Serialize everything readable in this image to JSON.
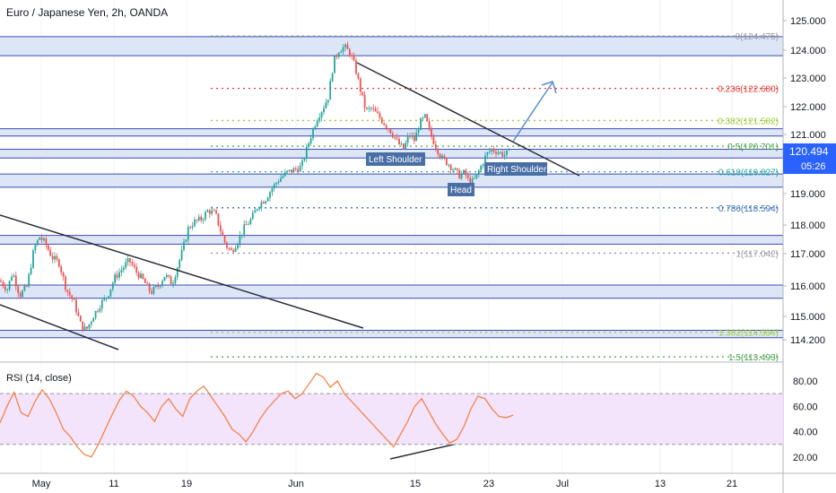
{
  "header": {
    "title": "Euro / Japanese Yen, 2h, OANDA"
  },
  "rsi_panel": {
    "label": "RSI (14, close)"
  },
  "price_badge": {
    "price": "120.494",
    "countdown": "05:26"
  },
  "colors": {
    "up": "#26a69a",
    "down": "#ef5350",
    "zone_fill": "#dde6f7",
    "zone_line": "#3b4bb0",
    "rsi_line": "#f57c3a",
    "rsi_band": "#f3e3fb",
    "badge": "#2962ff"
  },
  "chart_data": [
    {
      "type": "candlestick",
      "title": "Euro / Japanese Yen, 2h, OANDA",
      "x_ticks": [
        "May",
        "11",
        "19",
        "Jun",
        "15",
        "23",
        "Jul",
        "13",
        "21"
      ],
      "y_ticks": [
        "125.000",
        "124.000",
        "123.000",
        "122.000",
        "121.000",
        "119.000",
        "118.000",
        "117.000",
        "116.000",
        "115.000",
        "114.200"
      ],
      "ylim": [
        113.3,
        125.3
      ],
      "path": [
        [
          0,
          116.1
        ],
        [
          8,
          115.8
        ],
        [
          14,
          116.4
        ],
        [
          22,
          115.6
        ],
        [
          30,
          115.9
        ],
        [
          38,
          117.2
        ],
        [
          44,
          117.6
        ],
        [
          50,
          117.4
        ],
        [
          58,
          116.9
        ],
        [
          66,
          116.7
        ],
        [
          74,
          115.8
        ],
        [
          82,
          115.4
        ],
        [
          90,
          114.6
        ],
        [
          96,
          114.4
        ],
        [
          104,
          114.9
        ],
        [
          112,
          115.3
        ],
        [
          120,
          115.6
        ],
        [
          128,
          116.2
        ],
        [
          136,
          116.5
        ],
        [
          144,
          116.8
        ],
        [
          152,
          116.4
        ],
        [
          160,
          116.1
        ],
        [
          168,
          115.7
        ],
        [
          176,
          115.9
        ],
        [
          184,
          116.3
        ],
        [
          192,
          116.0
        ],
        [
          198,
          116.6
        ],
        [
          204,
          117.2
        ],
        [
          210,
          117.9
        ],
        [
          216,
          118.1
        ],
        [
          224,
          118.2
        ],
        [
          232,
          118.5
        ],
        [
          240,
          118.4
        ],
        [
          246,
          117.8
        ],
        [
          252,
          117.3
        ],
        [
          258,
          117.1
        ],
        [
          264,
          117.4
        ],
        [
          272,
          117.9
        ],
        [
          280,
          118.2
        ],
        [
          288,
          118.7
        ],
        [
          296,
          118.9
        ],
        [
          304,
          119.3
        ],
        [
          312,
          119.6
        ],
        [
          320,
          119.8
        ],
        [
          328,
          119.9
        ],
        [
          336,
          120.0
        ],
        [
          342,
          120.6
        ],
        [
          348,
          121.2
        ],
        [
          354,
          121.7
        ],
        [
          360,
          122.0
        ],
        [
          366,
          122.4
        ],
        [
          372,
          123.6
        ],
        [
          378,
          124.0
        ],
        [
          384,
          124.1
        ],
        [
          390,
          123.9
        ],
        [
          396,
          123.4
        ],
        [
          402,
          122.6
        ],
        [
          408,
          121.9
        ],
        [
          414,
          122.0
        ],
        [
          420,
          121.8
        ],
        [
          428,
          121.5
        ],
        [
          436,
          121.2
        ],
        [
          444,
          120.8
        ],
        [
          450,
          120.6
        ],
        [
          456,
          121.1
        ],
        [
          462,
          120.9
        ],
        [
          468,
          121.5
        ],
        [
          474,
          121.7
        ],
        [
          480,
          121.1
        ],
        [
          486,
          120.7
        ],
        [
          492,
          120.3
        ],
        [
          500,
          120.1
        ],
        [
          506,
          119.9
        ],
        [
          512,
          119.7
        ],
        [
          518,
          119.8
        ],
        [
          524,
          119.4
        ],
        [
          530,
          119.6
        ],
        [
          536,
          120.0
        ],
        [
          542,
          120.4
        ],
        [
          548,
          120.6
        ],
        [
          556,
          120.5
        ],
        [
          562,
          120.4
        ],
        [
          568,
          120.5
        ]
      ],
      "fib_levels": [
        {
          "ratio": "0",
          "price": "124.475",
          "label": "0(124.475)",
          "color": "#9598a1"
        },
        {
          "ratio": "0.236",
          "price": "122.680",
          "label": "0.236(122.680)",
          "color": "#e53935"
        },
        {
          "ratio": "0.382",
          "price": "121.582",
          "label": "0.382(121.582)",
          "color": "#9ccc3a"
        },
        {
          "ratio": "0.5",
          "price": "120.701",
          "label": "0.5(120.701)",
          "color": "#43a047"
        },
        {
          "ratio": "0.618",
          "price": "119.827",
          "label": "0.618(119.827)",
          "color": "#26a69a"
        },
        {
          "ratio": "0.786",
          "price": "118.594",
          "label": "0.786(118.594)",
          "color": "#3b6fb0"
        },
        {
          "ratio": "1",
          "price": "117.042",
          "label": "1(117.042)",
          "color": "#9598a1"
        },
        {
          "ratio": "1.382",
          "price": "114.334",
          "label": "1.382(114.334)",
          "color": "#9ccc3a"
        },
        {
          "ratio": "1.5",
          "price": "113.493",
          "label": "1.5(113.493)",
          "color": "#43a047"
        }
      ],
      "zones": [
        [
          123.8,
          124.45
        ],
        [
          121.05,
          121.3
        ],
        [
          120.3,
          120.6
        ],
        [
          119.3,
          119.75
        ],
        [
          117.35,
          117.65
        ],
        [
          115.5,
          115.95
        ],
        [
          114.15,
          114.4
        ]
      ],
      "annotations": [
        "Left Shoulder",
        "Head",
        "Right Shoulder"
      ]
    },
    {
      "type": "line",
      "title": "RSI (14, close)",
      "y_ticks": [
        "80.00",
        "60.00",
        "40.00",
        "20.00"
      ],
      "ylim": [
        14,
        92
      ],
      "band": [
        30,
        70
      ],
      "values": [
        47,
        60,
        71,
        55,
        52,
        64,
        73,
        66,
        55,
        42,
        36,
        28,
        22,
        20,
        30,
        42,
        54,
        65,
        72,
        68,
        60,
        55,
        48,
        60,
        66,
        58,
        52,
        66,
        72,
        76,
        68,
        60,
        52,
        42,
        38,
        32,
        40,
        50,
        58,
        64,
        70,
        72,
        66,
        70,
        78,
        86,
        83,
        75,
        80,
        70,
        64,
        58,
        52,
        46,
        40,
        34,
        28,
        38,
        48,
        60,
        66,
        56,
        46,
        38,
        31,
        34,
        44,
        58,
        68,
        66,
        58,
        52,
        51,
        53
      ]
    }
  ]
}
